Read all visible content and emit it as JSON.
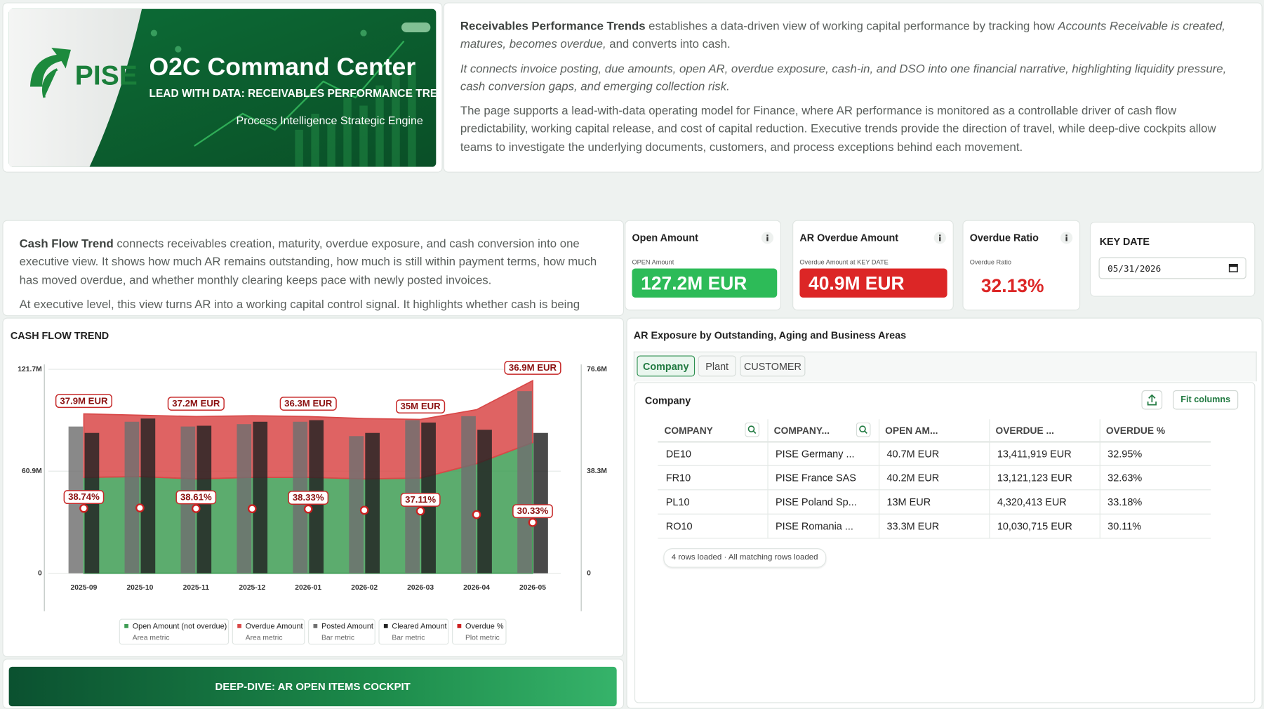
{
  "banner": {
    "logo": "PISE",
    "title": "O2C Command Center",
    "subtitle": "LEAD WITH DATA: RECEIVABLES PERFORMANCE TRENDS",
    "tagline": "Process Intelligence Strategic Engine"
  },
  "intro": {
    "paragraphs": [
      [
        {
          "text": "Receivables Performance Trends",
          "style": "bold"
        },
        {
          "text": " establishes a data-driven view of working capital performance by tracking how ",
          "style": "plain"
        },
        {
          "text": "Accounts Receivable is created, matures, becomes overdue,",
          "style": "italic"
        },
        {
          "text": " and converts into cash.",
          "style": "plain"
        }
      ],
      [
        {
          "text": "It connects invoice posting, due amounts, open AR, overdue exposure, cash-in, and DSO into one financial narrative, highlighting liquidity pressure, cash conversion gaps, and emerging collection risk.",
          "style": "italic"
        }
      ],
      [
        {
          "text": "The page supports a lead-with-data operating model for Finance, where AR performance is monitored as a controllable driver of cash flow predictability, working capital release, and cost of capital reduction. Executive trends provide the direction of travel, while deep-dive cockpits allow teams to investigate the underlying documents, customers, and process exceptions behind each movement.",
          "style": "plain"
        }
      ]
    ]
  },
  "cash_flow_text": {
    "paragraphs": [
      [
        {
          "text": "Cash Flow Trend",
          "style": "bold"
        },
        {
          "text": " connects receivables creation, maturity, overdue exposure, and cash conversion into one executive view. It shows how much AR remains outstanding, how much is still within payment terms, how much has moved overdue, and whether monthly clearing keeps pace with newly posted invoices.",
          "style": "plain"
        }
      ],
      [
        {
          "text": "At executive level, this view turns AR into a working capital control signal. It highlights whether cash is being",
          "style": "plain"
        }
      ]
    ]
  },
  "kpis": [
    {
      "title": "Open Amount",
      "caption": "OPEN Amount",
      "value": "127.2M EUR",
      "color": "#2dbb58",
      "filled": true
    },
    {
      "title": "AR Overdue Amount",
      "caption": "Overdue Amount at KEY DATE",
      "value": "40.9M EUR",
      "color": "#dc2626",
      "filled": true
    },
    {
      "title": "Overdue Ratio",
      "caption": "Overdue Ratio",
      "value": "32.13%",
      "color": "#dc2626",
      "filled": false
    }
  ],
  "key_date": {
    "label": "KEY DATE",
    "value": "05/31/2026"
  },
  "chart_data": {
    "type": "combo",
    "title": "CASH FLOW TREND",
    "categories": [
      "2025-09",
      "2025-10",
      "2025-11",
      "2025-12",
      "2026-01",
      "2026-02",
      "2026-03",
      "2026-04",
      "2026-05"
    ],
    "ylim": [
      0,
      121.7
    ],
    "yticks": [
      0,
      {
        "value": 60.9,
        "label": "60.9M"
      },
      {
        "value": 121.7,
        "label": "121.7M"
      }
    ],
    "y2lim": [
      0,
      76.6
    ],
    "y2ticks": [
      0,
      {
        "value": 38.3,
        "label": "38.3M"
      },
      {
        "value": 76.6,
        "label": "76.6M"
      }
    ],
    "grid": true,
    "series": [
      {
        "name": "Open Amount (not overdue)",
        "metric_kind": "Area metric",
        "kind": "area",
        "color": "#3f9d55",
        "values": [
          57.2,
          57.7,
          56.3,
          57.2,
          57.2,
          56.3,
          56.8,
          65.4,
          78
        ]
      },
      {
        "name": "Overdue Amount",
        "metric_kind": "Area metric",
        "kind": "area",
        "color": "#d94848",
        "values": [
          37.9,
          36.6,
          37.2,
          36.8,
          36.3,
          36.0,
          35.0,
          32.2,
          36.9
        ],
        "value_labels": [
          "37.9M EUR",
          null,
          "37.2M EUR",
          null,
          "36.3M EUR",
          null,
          "35M EUR",
          null,
          "36.9M EUR"
        ]
      },
      {
        "name": "Posted Amount",
        "metric_kind": "Bar metric",
        "kind": "bar",
        "axis": "y2",
        "color": "#6f6f6f",
        "values": [
          55.1,
          56.9,
          55.1,
          56.0,
          56.9,
          51.5,
          57.5,
          59.0,
          68.4
        ]
      },
      {
        "name": "Cleared Amount",
        "metric_kind": "Bar metric",
        "kind": "bar",
        "axis": "y2",
        "color": "#222222",
        "values": [
          52.7,
          58.1,
          55.4,
          56.9,
          57.5,
          52.7,
          56.6,
          53.9,
          52.7
        ]
      },
      {
        "name": "Overdue %",
        "metric_kind": "Plot metric",
        "kind": "point",
        "color": "#cc1f1f",
        "values": [
          38.74,
          39.0,
          38.61,
          38.5,
          38.33,
          37.6,
          37.11,
          35.0,
          30.33
        ],
        "value_labels": [
          "38.74%",
          null,
          "38.61%",
          null,
          "38.33%",
          null,
          "37.11%",
          null,
          "30.33%"
        ]
      }
    ]
  },
  "exposure": {
    "title": "AR Exposure by Outstanding, Aging and Business Areas",
    "tabs": [
      "Company",
      "Plant",
      "CUSTOMER"
    ],
    "active_tab": 0,
    "panel_title": "Company",
    "button": "Fit columns",
    "table": {
      "columns": [
        "COMPANY",
        "COMPANY...",
        "OPEN AM...",
        "OVERDUE ...",
        "OVERDUE %"
      ],
      "rows": [
        [
          "DE10",
          "PISE Germany ...",
          "40.7M EUR",
          "13,411,919 EUR",
          "32.95%"
        ],
        [
          "FR10",
          "PISE France SAS",
          "40.2M EUR",
          "13,121,123 EUR",
          "32.63%"
        ],
        [
          "PL10",
          "PISE Poland Sp...",
          "13M EUR",
          "4,320,413 EUR",
          "33.18%"
        ],
        [
          "RO10",
          "PISE Romania ...",
          "33.3M EUR",
          "10,030,715 EUR",
          "30.11%"
        ]
      ]
    },
    "status": "4 rows loaded · All matching rows loaded"
  },
  "deep_dive": {
    "button": "DEEP-DIVE: AR OPEN ITEMS COCKPIT"
  }
}
